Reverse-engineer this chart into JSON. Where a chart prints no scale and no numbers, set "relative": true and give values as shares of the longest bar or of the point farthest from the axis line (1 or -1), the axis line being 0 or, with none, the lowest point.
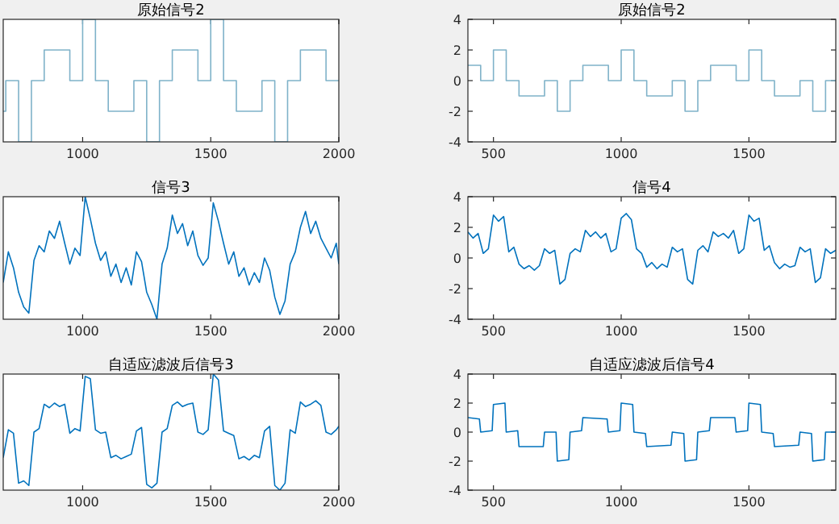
{
  "chart_data": [
    {
      "type": "step",
      "title": "原始信号2",
      "relative": true,
      "x": [
        690,
        700,
        750,
        800,
        850,
        950,
        1000,
        1050,
        1100,
        1200,
        1250,
        1300,
        1350,
        1450,
        1500,
        1550,
        1600,
        1700,
        1750,
        1800,
        1850,
        1950,
        2000
      ],
      "xlim": [
        690,
        2000
      ],
      "xticks": [
        1000,
        1500,
        2000
      ],
      "series": [
        {
          "color": "#7fb2c9",
          "values": [
            0.25,
            0.5,
            0,
            0.5,
            0.75,
            0.5,
            1,
            0.5,
            0.25,
            0.5,
            0,
            0.5,
            0.75,
            0.5,
            1,
            0.5,
            0.25,
            0.5,
            0,
            0.5,
            0.75,
            0.5,
            0.5
          ]
        }
      ]
    },
    {
      "type": "step",
      "title": "原始信号2",
      "x": [
        400,
        450,
        500,
        550,
        600,
        700,
        750,
        800,
        850,
        950,
        1000,
        1050,
        1100,
        1200,
        1250,
        1300,
        1350,
        1450,
        1500,
        1550,
        1600,
        1700,
        1750,
        1800,
        1840
      ],
      "xlim": [
        400,
        1840
      ],
      "xticks": [
        500,
        1000,
        1500
      ],
      "ylim": [
        -4,
        4
      ],
      "yticks": [
        -4,
        -2,
        0,
        2,
        4
      ],
      "series": [
        {
          "color": "#7fb2c9",
          "values": [
            1,
            0,
            2,
            0,
            -1,
            0,
            -2,
            0,
            1,
            0,
            2,
            0,
            -1,
            0,
            -2,
            0,
            1,
            0,
            2,
            0,
            -1,
            0,
            -2,
            0,
            0
          ]
        }
      ]
    },
    {
      "type": "line",
      "title": "信号3",
      "relative": true,
      "x": [
        690,
        710,
        730,
        750,
        770,
        790,
        810,
        830,
        850,
        870,
        890,
        910,
        930,
        950,
        970,
        990,
        1010,
        1030,
        1050,
        1070,
        1090,
        1110,
        1130,
        1150,
        1170,
        1190,
        1210,
        1230,
        1250,
        1270,
        1290,
        1310,
        1330,
        1350,
        1370,
        1390,
        1410,
        1430,
        1450,
        1470,
        1490,
        1510,
        1530,
        1550,
        1570,
        1590,
        1610,
        1630,
        1650,
        1670,
        1690,
        1710,
        1730,
        1750,
        1770,
        1790,
        1810,
        1830,
        1850,
        1870,
        1890,
        1910,
        1930,
        1950,
        1970,
        1990,
        2000
      ],
      "xlim": [
        690,
        2000
      ],
      "xticks": [
        1000,
        1500,
        2000
      ],
      "series": [
        {
          "color": "#0072bd",
          "values": [
            0.3,
            0.55,
            0.42,
            0.22,
            0.1,
            0.05,
            0.48,
            0.6,
            0.55,
            0.72,
            0.66,
            0.8,
            0.62,
            0.45,
            0.58,
            0.52,
            1.0,
            0.82,
            0.62,
            0.48,
            0.55,
            0.35,
            0.45,
            0.3,
            0.42,
            0.28,
            0.55,
            0.47,
            0.22,
            0.12,
            0.0,
            0.45,
            0.58,
            0.85,
            0.7,
            0.78,
            0.6,
            0.72,
            0.52,
            0.44,
            0.5,
            0.95,
            0.8,
            0.62,
            0.45,
            0.55,
            0.35,
            0.42,
            0.28,
            0.38,
            0.3,
            0.5,
            0.4,
            0.18,
            0.04,
            0.15,
            0.45,
            0.55,
            0.75,
            0.88,
            0.7,
            0.8,
            0.66,
            0.58,
            0.5,
            0.62,
            0.45
          ]
        }
      ]
    },
    {
      "type": "line",
      "title": "信号4",
      "x": [
        400,
        420,
        440,
        460,
        480,
        500,
        520,
        540,
        560,
        580,
        600,
        620,
        640,
        660,
        680,
        700,
        720,
        740,
        760,
        780,
        800,
        820,
        840,
        860,
        880,
        900,
        920,
        940,
        960,
        980,
        1000,
        1020,
        1040,
        1060,
        1080,
        1100,
        1120,
        1140,
        1160,
        1180,
        1200,
        1220,
        1240,
        1260,
        1280,
        1300,
        1320,
        1340,
        1360,
        1380,
        1400,
        1420,
        1440,
        1460,
        1480,
        1500,
        1520,
        1540,
        1560,
        1580,
        1600,
        1620,
        1640,
        1660,
        1680,
        1700,
        1720,
        1740,
        1760,
        1780,
        1800,
        1820,
        1840
      ],
      "xlim": [
        400,
        1840
      ],
      "xticks": [
        500,
        1000,
        1500
      ],
      "ylim": [
        -4,
        4
      ],
      "yticks": [
        -4,
        -2,
        0,
        2,
        4
      ],
      "series": [
        {
          "color": "#0072bd",
          "values": [
            1.7,
            1.3,
            1.6,
            0.3,
            0.6,
            2.8,
            2.4,
            2.7,
            0.4,
            0.7,
            -0.4,
            -0.7,
            -0.5,
            -0.8,
            -0.5,
            0.6,
            0.3,
            0.5,
            -1.7,
            -1.4,
            0.3,
            0.6,
            0.4,
            1.8,
            1.4,
            1.7,
            1.3,
            1.6,
            0.4,
            0.6,
            2.6,
            2.9,
            2.5,
            0.6,
            0.3,
            -0.6,
            -0.3,
            -0.7,
            -0.4,
            -0.6,
            0.7,
            0.4,
            0.6,
            -1.4,
            -1.7,
            0.5,
            0.8,
            0.4,
            1.7,
            1.4,
            1.6,
            1.3,
            1.8,
            0.3,
            0.6,
            2.8,
            2.4,
            2.6,
            0.5,
            0.8,
            -0.3,
            -0.7,
            -0.4,
            -0.6,
            -0.5,
            0.7,
            0.4,
            0.6,
            -1.6,
            -1.3,
            0.6,
            0.3,
            0.5
          ]
        }
      ]
    },
    {
      "type": "line",
      "title": "自适应滤波后信号3",
      "relative": true,
      "x": [
        690,
        710,
        730,
        750,
        770,
        790,
        810,
        830,
        850,
        870,
        890,
        910,
        930,
        950,
        970,
        990,
        1010,
        1030,
        1050,
        1070,
        1090,
        1110,
        1130,
        1150,
        1170,
        1190,
        1210,
        1230,
        1250,
        1270,
        1290,
        1310,
        1330,
        1350,
        1370,
        1390,
        1410,
        1430,
        1450,
        1470,
        1490,
        1510,
        1530,
        1550,
        1570,
        1590,
        1610,
        1630,
        1650,
        1670,
        1690,
        1710,
        1730,
        1750,
        1770,
        1790,
        1810,
        1830,
        1850,
        1870,
        1890,
        1910,
        1930,
        1950,
        1970,
        1990,
        2000
      ],
      "xlim": [
        690,
        2000
      ],
      "xticks": [
        1000,
        1500,
        2000
      ],
      "series": [
        {
          "color": "#0072bd",
          "values": [
            0.28,
            0.52,
            0.49,
            0.06,
            0.08,
            0.04,
            0.5,
            0.53,
            0.74,
            0.71,
            0.75,
            0.72,
            0.74,
            0.49,
            0.53,
            0.51,
            0.98,
            0.96,
            0.52,
            0.49,
            0.5,
            0.28,
            0.3,
            0.27,
            0.29,
            0.31,
            0.51,
            0.54,
            0.05,
            0.02,
            0.06,
            0.5,
            0.53,
            0.73,
            0.76,
            0.72,
            0.74,
            0.75,
            0.5,
            0.48,
            0.52,
            1.0,
            0.95,
            0.51,
            0.49,
            0.47,
            0.27,
            0.29,
            0.26,
            0.3,
            0.28,
            0.51,
            0.55,
            0.04,
            0.0,
            0.06,
            0.52,
            0.49,
            0.76,
            0.72,
            0.74,
            0.77,
            0.73,
            0.5,
            0.48,
            0.52,
            0.55
          ]
        }
      ]
    },
    {
      "type": "line",
      "title": "自适应滤波后信号4",
      "x": [
        400,
        445,
        450,
        495,
        500,
        545,
        550,
        595,
        600,
        695,
        700,
        745,
        750,
        795,
        800,
        845,
        850,
        945,
        950,
        995,
        1000,
        1045,
        1050,
        1095,
        1100,
        1195,
        1200,
        1245,
        1250,
        1295,
        1300,
        1345,
        1350,
        1445,
        1450,
        1495,
        1500,
        1545,
        1550,
        1595,
        1600,
        1695,
        1700,
        1745,
        1750,
        1795,
        1800,
        1840
      ],
      "xlim": [
        400,
        1840
      ],
      "xticks": [
        500,
        1000,
        1500
      ],
      "ylim": [
        -4,
        4
      ],
      "yticks": [
        -4,
        -2,
        0,
        2,
        4
      ],
      "series": [
        {
          "color": "#0072bd",
          "values": [
            1,
            0.9,
            0,
            0.1,
            1.9,
            2.0,
            0,
            0.1,
            -1,
            -1,
            0,
            0,
            -2,
            -1.9,
            0,
            0.1,
            1,
            0.9,
            0,
            0.1,
            2,
            1.9,
            0,
            -0.1,
            -1,
            -0.9,
            0,
            -0.1,
            -2,
            -1.9,
            0,
            0.1,
            1,
            1.0,
            0,
            0.1,
            2,
            1.9,
            0,
            -0.1,
            -1,
            -0.9,
            0,
            -0.1,
            -2,
            -1.9,
            0,
            0
          ]
        }
      ]
    }
  ]
}
